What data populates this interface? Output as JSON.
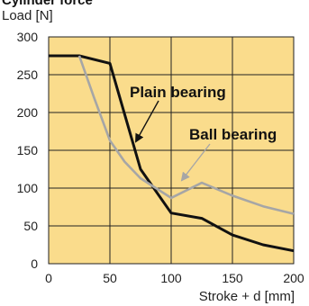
{
  "header": {
    "cut_title": "Cylinder force"
  },
  "chart_data": {
    "type": "line",
    "title": "",
    "xlabel": "Stroke + d [mm]",
    "ylabel": "Load [N]",
    "xlim": [
      0,
      200
    ],
    "ylim": [
      0,
      300
    ],
    "xticks": [
      0,
      50,
      100,
      150,
      200
    ],
    "yticks": [
      0,
      50,
      100,
      150,
      200,
      250,
      300
    ],
    "grid": true,
    "background_color": "#fadc8c",
    "series": [
      {
        "name": "Plain bearing",
        "color": "#111111",
        "x": [
          0,
          25,
          50,
          75,
          100,
          125,
          150,
          175,
          200
        ],
        "y": [
          275,
          275,
          265,
          125,
          67,
          60,
          38,
          25,
          17
        ]
      },
      {
        "name": "Ball bearing",
        "color": "#a6a6a6",
        "x": [
          25,
          37,
          50,
          62,
          75,
          100,
          125,
          150,
          175,
          200
        ],
        "y": [
          275,
          220,
          163,
          135,
          113,
          87,
          107,
          90,
          76,
          66
        ]
      }
    ]
  }
}
